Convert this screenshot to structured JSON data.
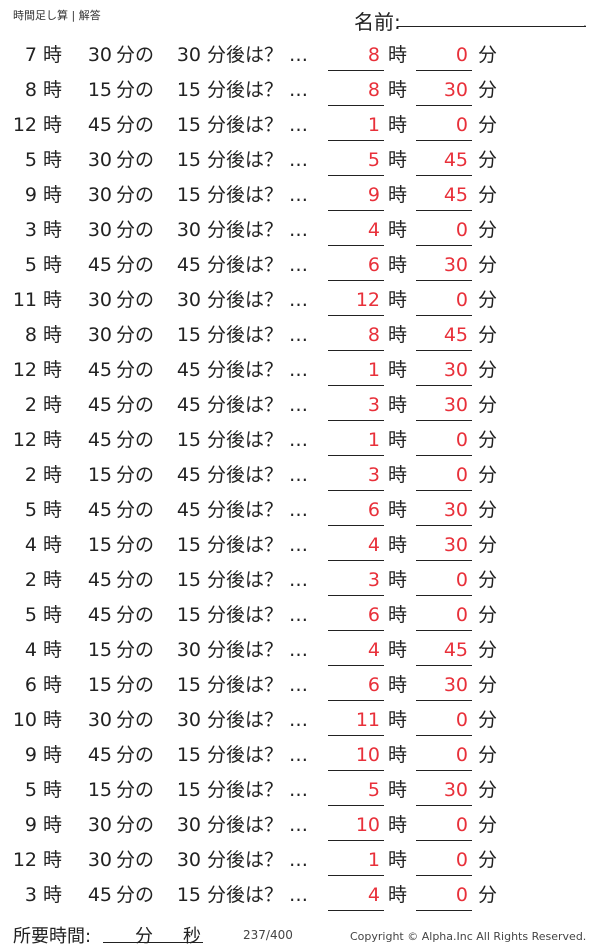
{
  "header": {
    "title": "時間足し算 | 解答",
    "name_label": "名前:",
    "name_end": "."
  },
  "labels": {
    "hour": "時",
    "min_of": "分の",
    "later": "分後は？ …",
    "min": "分"
  },
  "problems": [
    {
      "h": "7",
      "m": "30",
      "add": "30",
      "ah": "8",
      "am": "0"
    },
    {
      "h": "8",
      "m": "15",
      "add": "15",
      "ah": "8",
      "am": "30"
    },
    {
      "h": "12",
      "m": "45",
      "add": "15",
      "ah": "1",
      "am": "0"
    },
    {
      "h": "5",
      "m": "30",
      "add": "15",
      "ah": "5",
      "am": "45"
    },
    {
      "h": "9",
      "m": "30",
      "add": "15",
      "ah": "9",
      "am": "45"
    },
    {
      "h": "3",
      "m": "30",
      "add": "30",
      "ah": "4",
      "am": "0"
    },
    {
      "h": "5",
      "m": "45",
      "add": "45",
      "ah": "6",
      "am": "30"
    },
    {
      "h": "11",
      "m": "30",
      "add": "30",
      "ah": "12",
      "am": "0"
    },
    {
      "h": "8",
      "m": "30",
      "add": "15",
      "ah": "8",
      "am": "45"
    },
    {
      "h": "12",
      "m": "45",
      "add": "45",
      "ah": "1",
      "am": "30"
    },
    {
      "h": "2",
      "m": "45",
      "add": "45",
      "ah": "3",
      "am": "30"
    },
    {
      "h": "12",
      "m": "45",
      "add": "15",
      "ah": "1",
      "am": "0"
    },
    {
      "h": "2",
      "m": "15",
      "add": "45",
      "ah": "3",
      "am": "0"
    },
    {
      "h": "5",
      "m": "45",
      "add": "45",
      "ah": "6",
      "am": "30"
    },
    {
      "h": "4",
      "m": "15",
      "add": "15",
      "ah": "4",
      "am": "30"
    },
    {
      "h": "2",
      "m": "45",
      "add": "15",
      "ah": "3",
      "am": "0"
    },
    {
      "h": "5",
      "m": "45",
      "add": "15",
      "ah": "6",
      "am": "0"
    },
    {
      "h": "4",
      "m": "15",
      "add": "30",
      "ah": "4",
      "am": "45"
    },
    {
      "h": "6",
      "m": "15",
      "add": "15",
      "ah": "6",
      "am": "30"
    },
    {
      "h": "10",
      "m": "30",
      "add": "30",
      "ah": "11",
      "am": "0"
    },
    {
      "h": "9",
      "m": "45",
      "add": "15",
      "ah": "10",
      "am": "0"
    },
    {
      "h": "5",
      "m": "15",
      "add": "15",
      "ah": "5",
      "am": "30"
    },
    {
      "h": "9",
      "m": "30",
      "add": "30",
      "ah": "10",
      "am": "0"
    },
    {
      "h": "12",
      "m": "30",
      "add": "30",
      "ah": "1",
      "am": "0"
    },
    {
      "h": "3",
      "m": "45",
      "add": "15",
      "ah": "4",
      "am": "0"
    }
  ],
  "footer": {
    "time_label": "所要時間:",
    "fun": "分",
    "byou": "秒",
    "page": "237/400",
    "copyright": "Copyright ©  Alpha.Inc All Rights Reserved."
  },
  "colors": {
    "answer": "#e8303a"
  }
}
